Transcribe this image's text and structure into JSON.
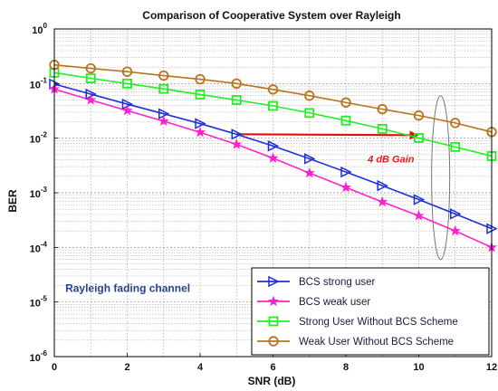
{
  "chart_data": {
    "type": "line",
    "title": "Comparison of Cooperative System over Rayleigh",
    "xlabel": "SNR (dB)",
    "ylabel": "BER",
    "xlim": [
      0,
      12
    ],
    "ylim": [
      1e-06,
      1
    ],
    "yscale": "log",
    "grid": true,
    "x_ticks": [
      "0",
      "2",
      "4",
      "6",
      "8",
      "10",
      "12"
    ],
    "y_ticks": [
      {
        "base": "10",
        "exp": "0"
      },
      {
        "base": "10",
        "exp": "-1"
      },
      {
        "base": "10",
        "exp": "-2"
      },
      {
        "base": "10",
        "exp": "-3"
      },
      {
        "base": "10",
        "exp": "-4"
      },
      {
        "base": "10",
        "exp": "-5"
      },
      {
        "base": "10",
        "exp": "-6"
      }
    ],
    "legend_position": "bottom-right",
    "x": [
      0,
      1,
      2,
      3,
      4,
      5,
      6,
      7,
      8,
      9,
      10,
      11,
      12
    ],
    "series": [
      {
        "name": "BCS strong user",
        "color": "#1f2fd8",
        "marker": "triangle-right",
        "values": [
          0.098,
          0.064,
          0.042,
          0.028,
          0.0185,
          0.0118,
          0.0072,
          0.0042,
          0.0024,
          0.00135,
          0.00075,
          0.00041,
          0.00022
        ]
      },
      {
        "name": "BCS weak user",
        "color": "#ff22cc",
        "marker": "star",
        "values": [
          0.079,
          0.05,
          0.032,
          0.0205,
          0.0128,
          0.0077,
          0.0043,
          0.0023,
          0.00125,
          0.00068,
          0.00038,
          0.0002,
          0.0001
        ]
      },
      {
        "name": "Strong User Without BCS Scheme",
        "color": "#22ee22",
        "marker": "square",
        "values": [
          0.158,
          0.125,
          0.1,
          0.08,
          0.063,
          0.05,
          0.039,
          0.029,
          0.021,
          0.0148,
          0.0101,
          0.0069,
          0.0047
        ]
      },
      {
        "name": "Weak User Without BCS Scheme",
        "color": "#b8741c",
        "marker": "circle",
        "values": [
          0.22,
          0.19,
          0.165,
          0.14,
          0.12,
          0.1,
          0.078,
          0.06,
          0.045,
          0.034,
          0.026,
          0.019,
          0.013
        ]
      }
    ],
    "annotations": {
      "gain_text": "4 dB Gain",
      "gain_arrow": {
        "x_from": 5,
        "x_to": 10,
        "y": 0.0118
      },
      "gain_ellipse": {
        "x": 10.6,
        "y_from": 6e-05,
        "y_to": 0.06
      },
      "channel_text": "Rayleigh fading channel",
      "channel_at": {
        "x": 0.3,
        "y": 1.8e-05
      }
    }
  }
}
